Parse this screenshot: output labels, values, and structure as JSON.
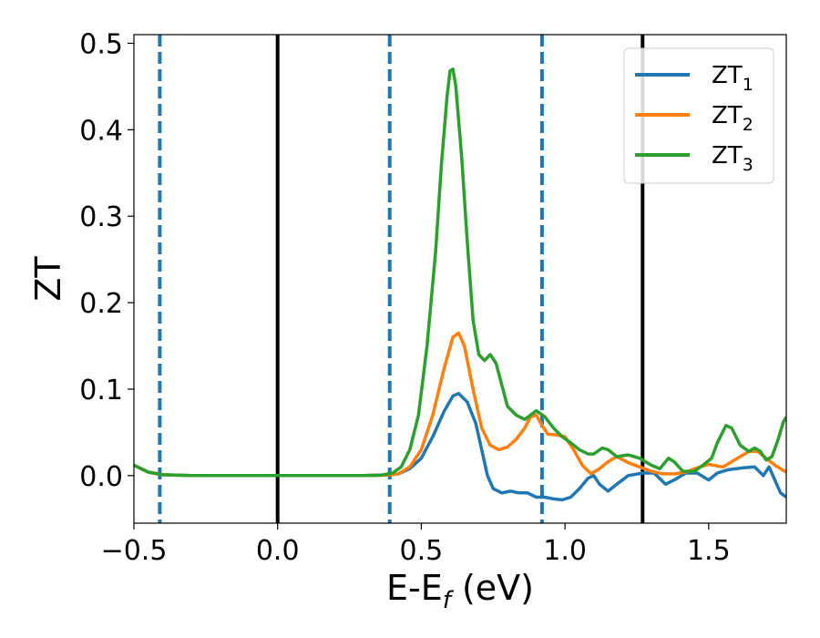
{
  "chart_data": {
    "type": "line",
    "title": "",
    "xlabel": {
      "main": "E-E",
      "sub": "f",
      "tail": " (eV)"
    },
    "ylabel": "ZT",
    "xlim": [
      -0.5,
      1.77
    ],
    "ylim": [
      -0.055,
      0.51
    ],
    "x_ticks": [
      {
        "value": -0.5,
        "label": "−0.5"
      },
      {
        "value": 0.0,
        "label": "0.0"
      },
      {
        "value": 0.5,
        "label": "0.5"
      },
      {
        "value": 1.0,
        "label": "1.0"
      },
      {
        "value": 1.5,
        "label": "1.5"
      }
    ],
    "y_ticks": [
      {
        "value": 0.0,
        "label": "0.0"
      },
      {
        "value": 0.1,
        "label": "0.1"
      },
      {
        "value": 0.2,
        "label": "0.2"
      },
      {
        "value": 0.3,
        "label": "0.3"
      },
      {
        "value": 0.4,
        "label": "0.4"
      },
      {
        "value": 0.5,
        "label": "0.5"
      }
    ],
    "grid": false,
    "legend_position": "top-right",
    "vertical_lines": [
      {
        "x": -0.41,
        "style": "dashed",
        "color": "#1f77b4"
      },
      {
        "x": 0.0,
        "style": "solid",
        "color": "#000000"
      },
      {
        "x": 0.39,
        "style": "dashed",
        "color": "#1f77b4"
      },
      {
        "x": 0.92,
        "style": "dashed",
        "color": "#1f77b4"
      },
      {
        "x": 1.27,
        "style": "solid",
        "color": "#000000"
      }
    ],
    "series": [
      {
        "name": "ZT",
        "sub": "1",
        "color": "#1f77b4",
        "points": [
          [
            -0.5,
            0.012
          ],
          [
            -0.45,
            0.004
          ],
          [
            -0.4,
            0.001
          ],
          [
            -0.3,
            0.0
          ],
          [
            0.0,
            0.0
          ],
          [
            0.3,
            0.0
          ],
          [
            0.38,
            0.0005
          ],
          [
            0.42,
            0.002
          ],
          [
            0.46,
            0.008
          ],
          [
            0.5,
            0.02
          ],
          [
            0.54,
            0.045
          ],
          [
            0.58,
            0.075
          ],
          [
            0.61,
            0.092
          ],
          [
            0.63,
            0.095
          ],
          [
            0.66,
            0.085
          ],
          [
            0.69,
            0.06
          ],
          [
            0.71,
            0.03
          ],
          [
            0.73,
            0.0
          ],
          [
            0.75,
            -0.015
          ],
          [
            0.78,
            -0.02
          ],
          [
            0.81,
            -0.018
          ],
          [
            0.84,
            -0.02
          ],
          [
            0.87,
            -0.02
          ],
          [
            0.9,
            -0.025
          ],
          [
            0.93,
            -0.025
          ],
          [
            0.96,
            -0.027
          ],
          [
            0.99,
            -0.028
          ],
          [
            1.02,
            -0.025
          ],
          [
            1.05,
            -0.015
          ],
          [
            1.08,
            -0.003
          ],
          [
            1.1,
            0.0
          ],
          [
            1.12,
            -0.01
          ],
          [
            1.15,
            -0.018
          ],
          [
            1.18,
            -0.01
          ],
          [
            1.22,
            0.0
          ],
          [
            1.27,
            0.003
          ],
          [
            1.31,
            0.003
          ],
          [
            1.35,
            -0.01
          ],
          [
            1.38,
            -0.005
          ],
          [
            1.42,
            0.003
          ],
          [
            1.46,
            0.003
          ],
          [
            1.5,
            -0.005
          ],
          [
            1.53,
            0.003
          ],
          [
            1.57,
            0.007
          ],
          [
            1.62,
            0.009
          ],
          [
            1.66,
            0.01
          ],
          [
            1.69,
            0.0
          ],
          [
            1.71,
            0.01
          ],
          [
            1.73,
            -0.005
          ],
          [
            1.75,
            -0.02
          ],
          [
            1.77,
            -0.025
          ]
        ]
      },
      {
        "name": "ZT",
        "sub": "2",
        "color": "#ff7f0e",
        "points": [
          [
            -0.5,
            0.012
          ],
          [
            -0.45,
            0.004
          ],
          [
            -0.4,
            0.001
          ],
          [
            -0.3,
            0.0
          ],
          [
            0.0,
            0.0
          ],
          [
            0.3,
            0.0
          ],
          [
            0.38,
            0.0005
          ],
          [
            0.42,
            0.002
          ],
          [
            0.46,
            0.01
          ],
          [
            0.5,
            0.03
          ],
          [
            0.54,
            0.07
          ],
          [
            0.58,
            0.125
          ],
          [
            0.61,
            0.16
          ],
          [
            0.63,
            0.165
          ],
          [
            0.65,
            0.15
          ],
          [
            0.68,
            0.1
          ],
          [
            0.71,
            0.055
          ],
          [
            0.74,
            0.035
          ],
          [
            0.77,
            0.03
          ],
          [
            0.8,
            0.033
          ],
          [
            0.83,
            0.042
          ],
          [
            0.86,
            0.055
          ],
          [
            0.88,
            0.068
          ],
          [
            0.9,
            0.07
          ],
          [
            0.92,
            0.058
          ],
          [
            0.94,
            0.048
          ],
          [
            0.97,
            0.047
          ],
          [
            1.0,
            0.045
          ],
          [
            1.03,
            0.03
          ],
          [
            1.06,
            0.012
          ],
          [
            1.09,
            0.002
          ],
          [
            1.12,
            0.008
          ],
          [
            1.15,
            0.016
          ],
          [
            1.18,
            0.022
          ],
          [
            1.22,
            0.015
          ],
          [
            1.26,
            0.01
          ],
          [
            1.3,
            0.005
          ],
          [
            1.34,
            0.002
          ],
          [
            1.38,
            0.002
          ],
          [
            1.42,
            0.004
          ],
          [
            1.46,
            0.009
          ],
          [
            1.5,
            0.013
          ],
          [
            1.55,
            0.01
          ],
          [
            1.6,
            0.02
          ],
          [
            1.64,
            0.028
          ],
          [
            1.67,
            0.028
          ],
          [
            1.7,
            0.02
          ],
          [
            1.73,
            0.012
          ],
          [
            1.77,
            0.004
          ]
        ]
      },
      {
        "name": "ZT",
        "sub": "3",
        "color": "#2ca02c",
        "points": [
          [
            -0.5,
            0.012
          ],
          [
            -0.45,
            0.004
          ],
          [
            -0.4,
            0.001
          ],
          [
            -0.3,
            0.0
          ],
          [
            0.0,
            0.0
          ],
          [
            0.3,
            0.0
          ],
          [
            0.36,
            0.0005
          ],
          [
            0.4,
            0.003
          ],
          [
            0.43,
            0.01
          ],
          [
            0.46,
            0.03
          ],
          [
            0.49,
            0.07
          ],
          [
            0.52,
            0.15
          ],
          [
            0.55,
            0.26
          ],
          [
            0.57,
            0.36
          ],
          [
            0.59,
            0.44
          ],
          [
            0.6,
            0.468
          ],
          [
            0.61,
            0.47
          ],
          [
            0.62,
            0.45
          ],
          [
            0.64,
            0.37
          ],
          [
            0.66,
            0.27
          ],
          [
            0.68,
            0.18
          ],
          [
            0.7,
            0.14
          ],
          [
            0.72,
            0.133
          ],
          [
            0.74,
            0.14
          ],
          [
            0.76,
            0.13
          ],
          [
            0.78,
            0.105
          ],
          [
            0.8,
            0.08
          ],
          [
            0.83,
            0.07
          ],
          [
            0.86,
            0.065
          ],
          [
            0.88,
            0.07
          ],
          [
            0.9,
            0.075
          ],
          [
            0.93,
            0.068
          ],
          [
            0.96,
            0.055
          ],
          [
            0.99,
            0.045
          ],
          [
            1.02,
            0.038
          ],
          [
            1.05,
            0.03
          ],
          [
            1.08,
            0.025
          ],
          [
            1.1,
            0.025
          ],
          [
            1.13,
            0.032
          ],
          [
            1.15,
            0.03
          ],
          [
            1.18,
            0.022
          ],
          [
            1.22,
            0.024
          ],
          [
            1.26,
            0.02
          ],
          [
            1.3,
            0.012
          ],
          [
            1.33,
            0.008
          ],
          [
            1.36,
            0.02
          ],
          [
            1.38,
            0.016
          ],
          [
            1.41,
            0.005
          ],
          [
            1.45,
            0.005
          ],
          [
            1.48,
            0.012
          ],
          [
            1.51,
            0.02
          ],
          [
            1.53,
            0.038
          ],
          [
            1.56,
            0.058
          ],
          [
            1.58,
            0.055
          ],
          [
            1.61,
            0.035
          ],
          [
            1.64,
            0.028
          ],
          [
            1.66,
            0.032
          ],
          [
            1.68,
            0.028
          ],
          [
            1.7,
            0.018
          ],
          [
            1.72,
            0.022
          ],
          [
            1.74,
            0.04
          ],
          [
            1.76,
            0.062
          ],
          [
            1.77,
            0.068
          ]
        ]
      }
    ]
  }
}
